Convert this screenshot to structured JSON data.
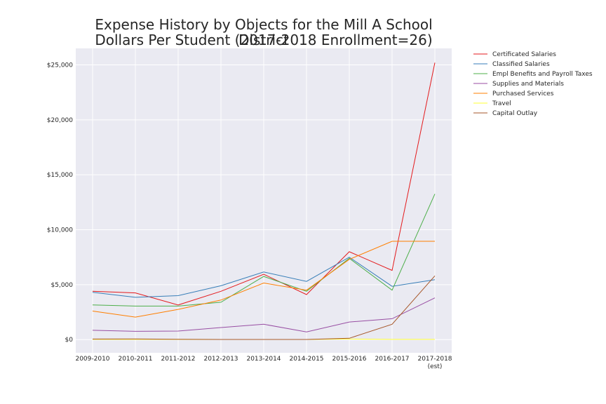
{
  "title_line1": "Expense History by Objects for the Mill A School District",
  "title_line2": "Dollars Per Student (2017-2018 Enrollment=26)",
  "chart_data": {
    "type": "line",
    "title": "Expense History by Objects for the Mill A School District Dollars Per Student (2017-2018 Enrollment=26)",
    "categories": [
      "2009-2010",
      "2010-2011",
      "2011-2012",
      "2012-2013",
      "2013-2014",
      "2014-2015",
      "2015-2016",
      "2016-2017",
      "2017-2018\n(est)"
    ],
    "ylim": [
      -1200,
      26500
    ],
    "yticks": [
      0,
      5000,
      10000,
      15000,
      20000,
      25000
    ],
    "ytick_labels": [
      "$0",
      "$5,000",
      "$10,000",
      "$15,000",
      "$20,000",
      "$25,000"
    ],
    "grid": true,
    "legend_position": "outside-right",
    "series": [
      {
        "name": "Certificated Salaries",
        "color": "#e41a1c",
        "values": [
          4400,
          4250,
          3150,
          4400,
          5950,
          4100,
          8000,
          6300,
          25200
        ]
      },
      {
        "name": "Classified Salaries",
        "color": "#377eb8",
        "values": [
          4300,
          3850,
          4000,
          4900,
          6150,
          5300,
          7500,
          4850,
          5450
        ]
      },
      {
        "name": "Empl Benefits and Payroll Taxes",
        "color": "#4daf4a",
        "values": [
          3150,
          3050,
          3050,
          3400,
          5750,
          4400,
          7400,
          4500,
          13250
        ]
      },
      {
        "name": "Supplies and Materials",
        "color": "#984ea3",
        "values": [
          850,
          750,
          780,
          1100,
          1400,
          700,
          1600,
          1900,
          3800
        ]
      },
      {
        "name": "Purchased Services",
        "color": "#ff7f00",
        "values": [
          2600,
          2050,
          2750,
          3600,
          5150,
          4500,
          7300,
          8950,
          8950
        ]
      },
      {
        "name": "Travel",
        "color": "#ffff33",
        "values": [
          20,
          20,
          20,
          10,
          10,
          10,
          50,
          20,
          20
        ]
      },
      {
        "name": "Capital Outlay",
        "color": "#a65628",
        "values": [
          50,
          60,
          30,
          10,
          10,
          10,
          120,
          1400,
          5800
        ]
      }
    ]
  }
}
